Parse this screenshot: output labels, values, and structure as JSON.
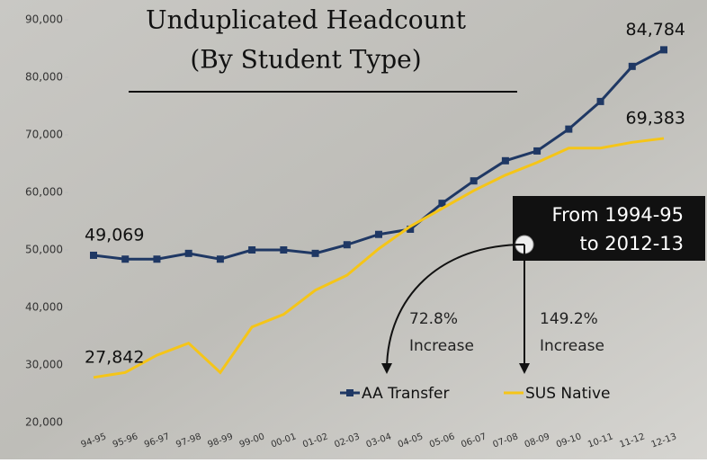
{
  "chart_data": {
    "type": "line",
    "title": "Unduplicated Headcount",
    "subtitle": "(By Student Type)",
    "categories": [
      "94-95",
      "95-96",
      "96-97",
      "97-98",
      "98-99",
      "99-00",
      "00-01",
      "01-02",
      "02-03",
      "03-04",
      "04-05",
      "05-06",
      "06-07",
      "07-08",
      "08-09",
      "09-10",
      "10-11",
      "11-12",
      "12-13"
    ],
    "series": [
      {
        "name": "AA Transfer",
        "color": "#1f3864",
        "values": [
          49069,
          48400,
          48400,
          49400,
          48400,
          50000,
          50000,
          49400,
          50900,
          52700,
          53600,
          58100,
          62000,
          65500,
          67200,
          71000,
          75800,
          81900,
          84784
        ],
        "value_labels": [
          "49,069",
          null,
          null,
          null,
          null,
          null,
          null,
          null,
          null,
          null,
          null,
          null,
          null,
          null,
          null,
          null,
          null,
          null,
          "84,784"
        ]
      },
      {
        "name": "SUS Native",
        "color": "#f5c518",
        "values": [
          27842,
          28700,
          31700,
          33800,
          28700,
          36600,
          38800,
          43000,
          45600,
          50200,
          54100,
          57200,
          60300,
          63000,
          65200,
          67700,
          67700,
          68700,
          69383
        ],
        "value_labels": [
          "27,842",
          null,
          null,
          null,
          null,
          null,
          null,
          null,
          null,
          null,
          null,
          null,
          null,
          null,
          null,
          null,
          null,
          null,
          "69,383"
        ]
      }
    ],
    "ylim": [
      20000,
      90000
    ],
    "yticks": [
      {
        "value": 20000,
        "label": "20,000"
      },
      {
        "value": 30000,
        "label": "30,000"
      },
      {
        "value": 40000,
        "label": "40,000"
      },
      {
        "value": 50000,
        "label": "50,000"
      },
      {
        "value": 60000,
        "label": "60,000"
      },
      {
        "value": 70000,
        "label": "70,000"
      },
      {
        "value": 80000,
        "label": "80,000"
      },
      {
        "value": 90000,
        "label": "90,000"
      }
    ],
    "legend": "bottom",
    "callout": [
      "From 1994-95",
      "to 2012-13"
    ],
    "notes": [
      [
        "72.8%",
        "Increase"
      ],
      [
        "149.2%",
        "Increase"
      ]
    ]
  }
}
